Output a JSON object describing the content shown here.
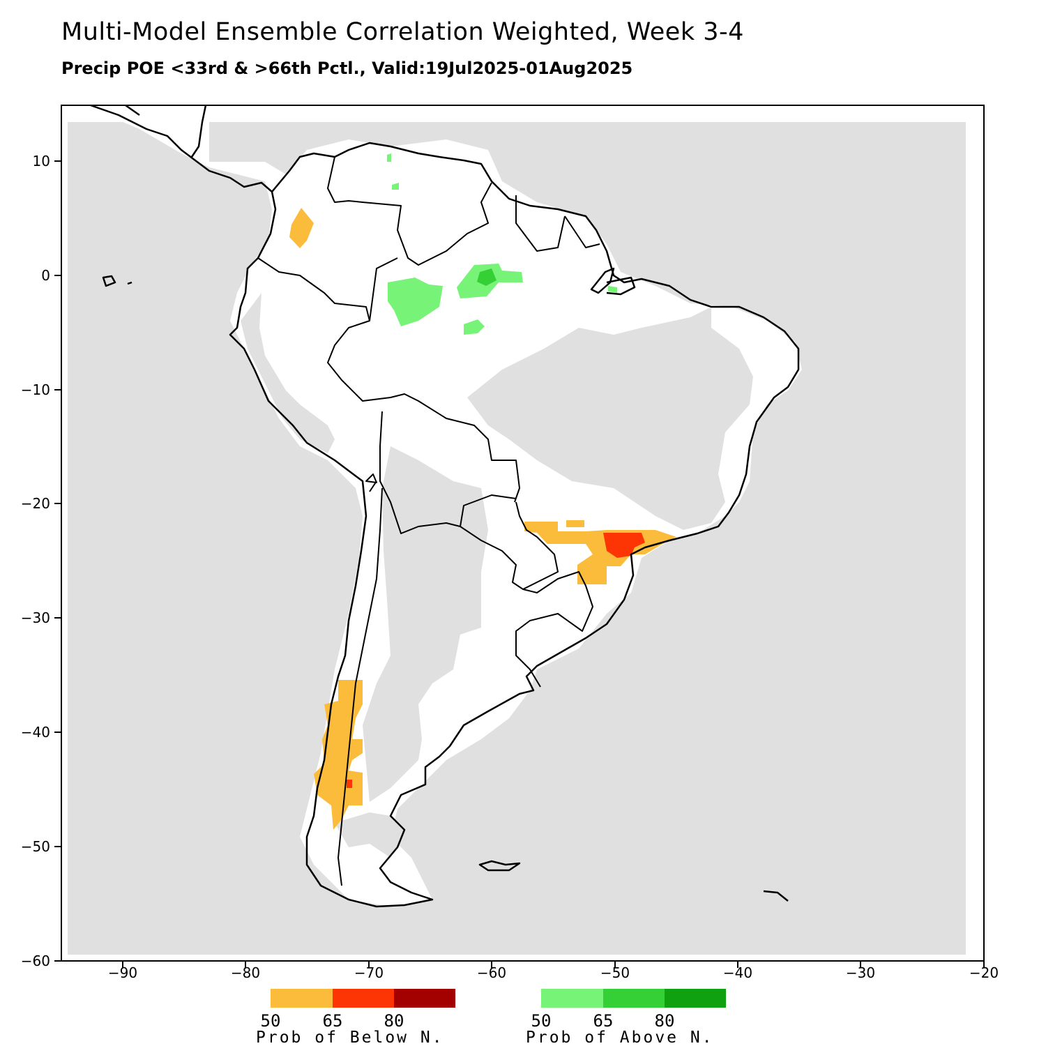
{
  "title": "Multi-Model Ensemble Correlation Weighted, Week 3-4",
  "subtitle": "Precip POE <33rd & >66th Pctl., Valid:19Jul2025-01Aug2025",
  "x_ticks": [
    "−90",
    "−80",
    "−70",
    "−60",
    "−50",
    "−40",
    "−30",
    "−20"
  ],
  "y_ticks": [
    "10",
    "0",
    "−10",
    "−20",
    "−30",
    "−40",
    "−50",
    "−60"
  ],
  "colors": {
    "no_data": "#e0e0e0",
    "below_50": "#fbbc3c",
    "below_65": "#fd3504",
    "below_80": "#a30000",
    "above_50": "#77f477",
    "above_65": "#35d035",
    "above_80": "#0fa10f"
  },
  "legend_below": {
    "labels": [
      "50",
      "65",
      "80"
    ],
    "caption": "Prob of Below N."
  },
  "legend_above": {
    "labels": [
      "50",
      "65",
      "80"
    ],
    "caption": "Prob of Above N."
  }
}
